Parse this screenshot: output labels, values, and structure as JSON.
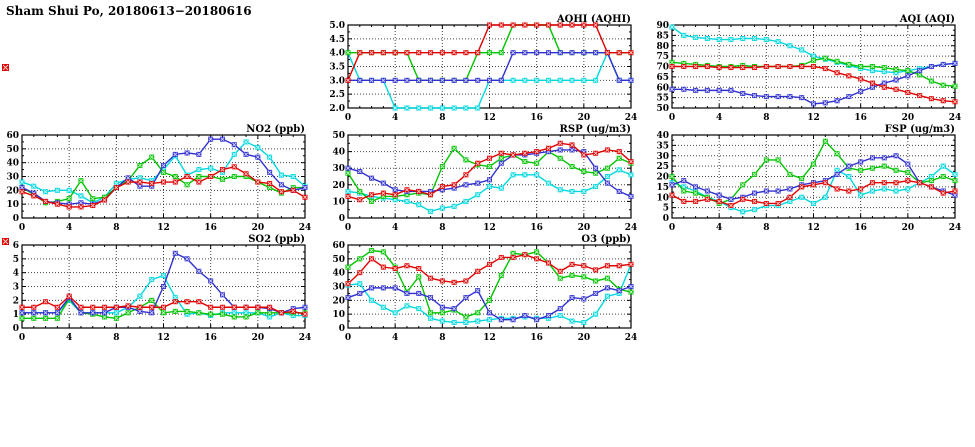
{
  "page": {
    "title": "Sham Shui Po, 20180613−20180616"
  },
  "colors": {
    "red": "#e00000",
    "green": "#00c400",
    "blue": "#3030d0",
    "cyan": "#00d8e0",
    "axis": "#000000",
    "grid": "#444444"
  },
  "chart_data": [
    {
      "type": "line",
      "id": "aqhi",
      "title": "AQHI (AQHI)",
      "xlabel": "",
      "ylabel": "",
      "grid": true,
      "legend_position": "none",
      "xlim": [
        0,
        24
      ],
      "ylim": [
        2.0,
        5.0
      ],
      "ydecimals": 1,
      "xticks": [
        0,
        4,
        8,
        12,
        16,
        20,
        24
      ],
      "yticks": [
        2.0,
        2.5,
        3.0,
        3.5,
        4.0,
        4.5,
        5.0
      ],
      "series": [
        {
          "name": "cyan",
          "color": "#00d8e0",
          "values": [
            4,
            3,
            3,
            3,
            2,
            2,
            2,
            2,
            2,
            2,
            2,
            2,
            3,
            3,
            3,
            3,
            3,
            3,
            3,
            3,
            3,
            3,
            4,
            3,
            3
          ]
        },
        {
          "name": "green",
          "color": "#00c400",
          "values": [
            4,
            4,
            4,
            4,
            4,
            4,
            3,
            3,
            3,
            3,
            3,
            4,
            4,
            4,
            5,
            5,
            5,
            5,
            4,
            4,
            4,
            4,
            4,
            4,
            4
          ]
        },
        {
          "name": "blue",
          "color": "#3030d0",
          "values": [
            3,
            3,
            3,
            3,
            3,
            3,
            3,
            3,
            3,
            3,
            3,
            3,
            3,
            3,
            4,
            4,
            4,
            4,
            4,
            4,
            4,
            4,
            4,
            3,
            3
          ]
        },
        {
          "name": "red",
          "color": "#e00000",
          "values": [
            3,
            4,
            4,
            4,
            4,
            4,
            4,
            4,
            4,
            4,
            4,
            4,
            5,
            5,
            5,
            5,
            5,
            5,
            5,
            5,
            5,
            5,
            4,
            4,
            4
          ]
        }
      ]
    },
    {
      "type": "line",
      "id": "aqi",
      "title": "AQI (AQI)",
      "xlabel": "",
      "ylabel": "",
      "grid": true,
      "legend_position": "none",
      "xlim": [
        0,
        24
      ],
      "ylim": [
        50,
        90
      ],
      "ydecimals": 0,
      "xticks": [
        0,
        4,
        8,
        12,
        16,
        20,
        24
      ],
      "yticks": [
        50,
        55,
        60,
        65,
        70,
        75,
        80,
        85,
        90
      ],
      "series": [
        {
          "name": "cyan",
          "color": "#00d8e0",
          "values": [
            89,
            85,
            84,
            83.5,
            83,
            83,
            83.5,
            83.5,
            83,
            82,
            80,
            78,
            75,
            73.5,
            72,
            70.5,
            69,
            68,
            67.5,
            67,
            68,
            69,
            70,
            71,
            71.5
          ]
        },
        {
          "name": "green",
          "color": "#00c400",
          "values": [
            72,
            71.5,
            71,
            70.5,
            70,
            70,
            70.5,
            70,
            70,
            70,
            70,
            70.5,
            73,
            74,
            72.5,
            71,
            70,
            70,
            69.5,
            68.5,
            68,
            66,
            63,
            61,
            60.5
          ]
        },
        {
          "name": "blue",
          "color": "#3030d0",
          "values": [
            59,
            59,
            58.5,
            58.5,
            58.5,
            58.5,
            57,
            56,
            55.5,
            55.5,
            55.5,
            55,
            52,
            52.5,
            53.5,
            55.5,
            58,
            60,
            62,
            63.5,
            65.5,
            68,
            70,
            71,
            71.5
          ]
        },
        {
          "name": "red",
          "color": "#e00000",
          "values": [
            70,
            70,
            70,
            70,
            69.5,
            69.5,
            69.5,
            69.5,
            70,
            70,
            70,
            70,
            70,
            69,
            67,
            65.5,
            64,
            62,
            60,
            59,
            57.5,
            56,
            54.5,
            53.5,
            53
          ]
        }
      ]
    },
    {
      "type": "line",
      "id": "no2",
      "title": "NO2 (ppb)",
      "xlabel": "",
      "ylabel": "",
      "grid": true,
      "legend_position": "none",
      "xlim": [
        0,
        24
      ],
      "ylim": [
        0,
        60
      ],
      "ydecimals": 0,
      "xticks": [
        0,
        4,
        8,
        12,
        16,
        20,
        24
      ],
      "yticks": [
        0,
        10,
        20,
        30,
        40,
        50,
        60
      ],
      "series": [
        {
          "name": "cyan",
          "color": "#00d8e0",
          "values": [
            26,
            23,
            19,
            20,
            20,
            16,
            11,
            15,
            25,
            28,
            29,
            27,
            35,
            45,
            31,
            35,
            36,
            33,
            46,
            55,
            51,
            44,
            31,
            30,
            23
          ]
        },
        {
          "name": "green",
          "color": "#00c400",
          "values": [
            22,
            17,
            11,
            12,
            14,
            27,
            14,
            15,
            22,
            27,
            38,
            44,
            33,
            30,
            24,
            30,
            30,
            28,
            30,
            30,
            26,
            22,
            18,
            22,
            22
          ]
        },
        {
          "name": "blue",
          "color": "#3030d0",
          "values": [
            22,
            18,
            12,
            11,
            10,
            11,
            10,
            13,
            22,
            29,
            23,
            23,
            38,
            46,
            47,
            46,
            57,
            57,
            53,
            46,
            44,
            33,
            24,
            20,
            22
          ]
        },
        {
          "name": "red",
          "color": "#e00000",
          "values": [
            19,
            16,
            12,
            10,
            8,
            8,
            9,
            13,
            22,
            26,
            26,
            25,
            26,
            26,
            30,
            26,
            30,
            35,
            37,
            32,
            26,
            25,
            19,
            20,
            15
          ]
        }
      ]
    },
    {
      "type": "line",
      "id": "rsp",
      "title": "RSP (ug/m3)",
      "xlabel": "",
      "ylabel": "",
      "grid": true,
      "legend_position": "none",
      "xlim": [
        0,
        24
      ],
      "ylim": [
        0,
        50
      ],
      "ydecimals": 0,
      "xticks": [
        0,
        4,
        8,
        12,
        16,
        20,
        24
      ],
      "yticks": [
        0,
        10,
        20,
        30,
        40,
        50
      ],
      "series": [
        {
          "name": "cyan",
          "color": "#00d8e0",
          "values": [
            16,
            15,
            13,
            12,
            11,
            10,
            8,
            4,
            6,
            7,
            10,
            14,
            19,
            18,
            26,
            26,
            26,
            21,
            17,
            16,
            16,
            19,
            25,
            29,
            26
          ]
        },
        {
          "name": "green",
          "color": "#00c400",
          "values": [
            27,
            16,
            10,
            13,
            13,
            14,
            15,
            14,
            31,
            42,
            35,
            32,
            31,
            36,
            38,
            34,
            33,
            40,
            36,
            31,
            28,
            27,
            30,
            36,
            33
          ]
        },
        {
          "name": "blue",
          "color": "#3030d0",
          "values": [
            30,
            28,
            24,
            21,
            17,
            16,
            16,
            16,
            17,
            18,
            20,
            21,
            23,
            33,
            38,
            38,
            39,
            40,
            41,
            41,
            40,
            30,
            21,
            16,
            13
          ]
        },
        {
          "name": "red",
          "color": "#e00000",
          "values": [
            13,
            11,
            14,
            15,
            14,
            17,
            16,
            14,
            19,
            20,
            26,
            33,
            36,
            39,
            38,
            39,
            40,
            42,
            45,
            44,
            38,
            39,
            41,
            40,
            34
          ]
        }
      ]
    },
    {
      "type": "line",
      "id": "fsp",
      "title": "FSP (ug/m3)",
      "xlabel": "",
      "ylabel": "",
      "grid": true,
      "legend_position": "none",
      "xlim": [
        0,
        24
      ],
      "ylim": [
        0,
        40
      ],
      "ydecimals": 0,
      "xticks": [
        0,
        4,
        8,
        12,
        16,
        20,
        24
      ],
      "yticks": [
        0,
        5,
        10,
        15,
        20,
        25,
        30,
        35,
        40
      ],
      "series": [
        {
          "name": "cyan",
          "color": "#00d8e0",
          "values": [
            17,
            15,
            13,
            10,
            8,
            5,
            3,
            4,
            6,
            6,
            8,
            10,
            7,
            10,
            23,
            20,
            11,
            13,
            14,
            13,
            14,
            17,
            20,
            25,
            21
          ]
        },
        {
          "name": "green",
          "color": "#00c400",
          "values": [
            20,
            13,
            12,
            10,
            7,
            9,
            16,
            21,
            28,
            28,
            21,
            19,
            26,
            37,
            31,
            24,
            23,
            24,
            25,
            23,
            22,
            17,
            18,
            20,
            18
          ]
        },
        {
          "name": "blue",
          "color": "#3030d0",
          "values": [
            16,
            18,
            15,
            13,
            11,
            9,
            10,
            12,
            13,
            13,
            14,
            16,
            17,
            18,
            21,
            25,
            27,
            29,
            29,
            30,
            26,
            17,
            15,
            13,
            11
          ]
        },
        {
          "name": "red",
          "color": "#e00000",
          "values": [
            11,
            8,
            8,
            9,
            8,
            6,
            9,
            8,
            7,
            7,
            10,
            15,
            16,
            17,
            14,
            13,
            14,
            17,
            17,
            17,
            18,
            17,
            15,
            12,
            13
          ]
        }
      ]
    },
    {
      "type": "line",
      "id": "so2",
      "title": "SO2 (ppb)",
      "xlabel": "",
      "ylabel": "",
      "grid": true,
      "legend_position": "none",
      "xlim": [
        0,
        24
      ],
      "ylim": [
        0,
        6
      ],
      "ydecimals": 0,
      "xticks": [
        0,
        4,
        8,
        12,
        16,
        20,
        24
      ],
      "yticks": [
        0,
        1,
        2,
        3,
        4,
        5,
        6
      ],
      "series": [
        {
          "name": "cyan",
          "color": "#00d8e0",
          "values": [
            1.1,
            1.1,
            1.1,
            1.1,
            2.0,
            1.1,
            1.1,
            1.1,
            1.1,
            1.5,
            2.3,
            3.5,
            3.8,
            2.2,
            1.0,
            1.1,
            0.9,
            1.1,
            1.1,
            1.1,
            1.1,
            0.8,
            1.1,
            0.9,
            0.9
          ]
        },
        {
          "name": "green",
          "color": "#00c400",
          "values": [
            0.7,
            0.7,
            0.7,
            0.7,
            2.1,
            1.1,
            1.0,
            0.8,
            0.7,
            1.1,
            1.5,
            2.0,
            1.1,
            1.2,
            1.2,
            1.1,
            1.0,
            1.0,
            0.8,
            0.8,
            1.1,
            1.1,
            1.1,
            1.1,
            1.1
          ]
        },
        {
          "name": "blue",
          "color": "#3030d0",
          "values": [
            1.1,
            1.1,
            1.1,
            1.1,
            2.2,
            1.1,
            1.1,
            1.1,
            1.5,
            1.5,
            1.2,
            1.1,
            3.0,
            5.4,
            5.0,
            4.1,
            3.4,
            2.4,
            1.5,
            1.5,
            1.5,
            1.4,
            1.1,
            1.4,
            1.5
          ]
        },
        {
          "name": "red",
          "color": "#e00000",
          "values": [
            1.5,
            1.5,
            1.9,
            1.5,
            2.3,
            1.5,
            1.5,
            1.5,
            1.5,
            1.6,
            1.5,
            1.5,
            1.5,
            1.9,
            1.9,
            1.9,
            1.5,
            1.5,
            1.5,
            1.5,
            1.5,
            1.5,
            1.1,
            1.2,
            1.0
          ]
        }
      ]
    },
    {
      "type": "line",
      "id": "o3",
      "title": "O3 (ppb)",
      "xlabel": "",
      "ylabel": "",
      "grid": true,
      "legend_position": "none",
      "xlim": [
        0,
        24
      ],
      "ylim": [
        0,
        60
      ],
      "ydecimals": 0,
      "xticks": [
        0,
        4,
        8,
        12,
        16,
        20,
        24
      ],
      "yticks": [
        0,
        10,
        20,
        30,
        40,
        50,
        60
      ],
      "series": [
        {
          "name": "cyan",
          "color": "#00d8e0",
          "values": [
            31,
            32,
            20,
            15,
            11,
            16,
            14,
            7,
            5,
            4,
            4,
            5,
            6,
            7,
            7,
            8,
            7,
            7,
            9,
            5,
            4,
            10,
            23,
            25,
            46
          ]
        },
        {
          "name": "green",
          "color": "#00c400",
          "values": [
            44,
            50,
            56,
            55,
            44,
            26,
            37,
            11,
            11,
            13,
            8,
            11,
            20,
            38,
            54,
            53,
            55,
            47,
            36,
            38,
            37,
            34,
            36,
            28,
            26
          ]
        },
        {
          "name": "blue",
          "color": "#3030d0",
          "values": [
            22,
            25,
            29,
            29,
            29,
            25,
            25,
            22,
            15,
            14,
            22,
            27,
            11,
            6,
            6,
            9,
            6,
            9,
            14,
            22,
            21,
            25,
            29,
            27,
            30
          ]
        },
        {
          "name": "red",
          "color": "#e00000",
          "values": [
            32,
            40,
            50,
            44,
            43,
            45,
            43,
            36,
            34,
            33,
            34,
            41,
            46,
            51,
            51,
            53,
            50,
            47,
            41,
            46,
            45,
            42,
            45,
            45,
            46
          ]
        }
      ]
    }
  ]
}
